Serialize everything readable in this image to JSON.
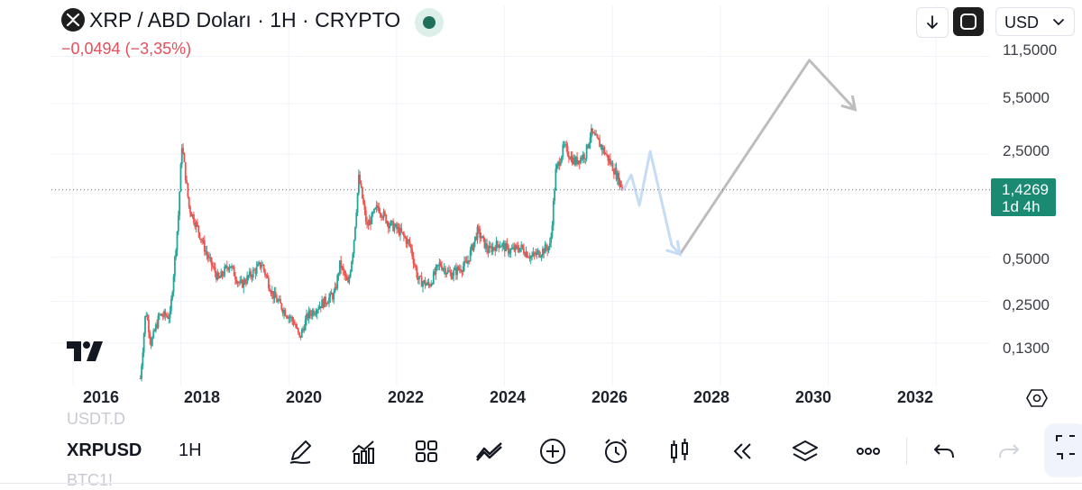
{
  "header": {
    "title": "XRP / ABD Doları · 1H · CRYPTO",
    "change": "−0,0494 (−3,35%)",
    "currency_label": "USD"
  },
  "price_scale": {
    "labels": [
      "11,5000",
      "5,5000",
      "2,5000",
      "0,5000",
      "0,2500",
      "0,1300"
    ],
    "last_price": "1,4269",
    "countdown": "1d 4h"
  },
  "time_axis": {
    "labels": [
      "2016",
      "2018",
      "2020",
      "2022",
      "2024",
      "2026",
      "2028",
      "2030",
      "2032"
    ]
  },
  "bottom_toolbar": {
    "ghost_top": "USDT.D",
    "symbol": "XRPUSD",
    "interval": "1H",
    "ghost_bottom": "BTC1!",
    "icons": [
      "draw-icon",
      "indicators-icon",
      "layouts-icon",
      "chart-type-icon",
      "add-icon",
      "alert-icon",
      "candles-icon",
      "replay-icon",
      "layers-icon",
      "more-icon",
      "undo-icon",
      "redo-icon",
      "fullscreen-icon"
    ]
  },
  "colors": {
    "up": "#26a69a",
    "down": "#ef5350",
    "accent": "#1b8a72",
    "negative_text": "#e34f5a",
    "projection_blue": "#c6dcf5",
    "projection_gray": "#bdbdbd"
  },
  "chart_data": {
    "type": "candlestick",
    "symbol": "XRPUSD",
    "scale": "log",
    "x_range": [
      2015.6,
      2033.0
    ],
    "y_range": [
      0.075,
      14.5
    ],
    "y_ticks": [
      11.5,
      5.5,
      2.5,
      0.5,
      0.25,
      0.13
    ],
    "last_price": 1.4269,
    "price_path": [
      [
        2017.25,
        0.075
      ],
      [
        2017.35,
        0.22
      ],
      [
        2017.45,
        0.13
      ],
      [
        2017.6,
        0.2
      ],
      [
        2017.8,
        0.2
      ],
      [
        2017.95,
        0.9
      ],
      [
        2018.02,
        2.9
      ],
      [
        2018.15,
        1.1
      ],
      [
        2018.3,
        0.8
      ],
      [
        2018.5,
        0.5
      ],
      [
        2018.7,
        0.35
      ],
      [
        2018.9,
        0.45
      ],
      [
        2019.1,
        0.32
      ],
      [
        2019.3,
        0.38
      ],
      [
        2019.5,
        0.45
      ],
      [
        2019.7,
        0.28
      ],
      [
        2019.9,
        0.22
      ],
      [
        2020.1,
        0.18
      ],
      [
        2020.2,
        0.14
      ],
      [
        2020.35,
        0.2
      ],
      [
        2020.6,
        0.24
      ],
      [
        2020.85,
        0.28
      ],
      [
        2020.95,
        0.45
      ],
      [
        2021.1,
        0.32
      ],
      [
        2021.2,
        0.6
      ],
      [
        2021.3,
        1.75
      ],
      [
        2021.45,
        0.8
      ],
      [
        2021.65,
        1.1
      ],
      [
        2021.85,
        0.85
      ],
      [
        2022.05,
        0.75
      ],
      [
        2022.25,
        0.6
      ],
      [
        2022.4,
        0.35
      ],
      [
        2022.6,
        0.32
      ],
      [
        2022.8,
        0.45
      ],
      [
        2023.0,
        0.38
      ],
      [
        2023.3,
        0.45
      ],
      [
        2023.5,
        0.75
      ],
      [
        2023.7,
        0.55
      ],
      [
        2023.9,
        0.62
      ],
      [
        2024.1,
        0.55
      ],
      [
        2024.3,
        0.58
      ],
      [
        2024.5,
        0.5
      ],
      [
        2024.7,
        0.55
      ],
      [
        2024.85,
        0.6
      ],
      [
        2024.95,
        1.9
      ],
      [
        2025.1,
        2.8
      ],
      [
        2025.3,
        2.2
      ],
      [
        2025.5,
        2.5
      ],
      [
        2025.6,
        3.5
      ],
      [
        2025.8,
        2.8
      ],
      [
        2026.05,
        1.9
      ],
      [
        2026.2,
        1.42
      ]
    ],
    "projection_blue": [
      [
        2026.2,
        1.42
      ],
      [
        2026.35,
        1.8
      ],
      [
        2026.5,
        1.12
      ],
      [
        2026.7,
        2.6
      ],
      [
        2027.1,
        0.6
      ],
      [
        2027.25,
        0.52
      ]
    ],
    "projection_gray": [
      [
        2027.25,
        0.52
      ],
      [
        2029.65,
        10.8
      ],
      [
        2030.5,
        5.0
      ]
    ],
    "time_labels": [
      "2016",
      "2018",
      "2020",
      "2022",
      "2024",
      "2026",
      "2028",
      "2030",
      "2032"
    ],
    "grid": true
  }
}
